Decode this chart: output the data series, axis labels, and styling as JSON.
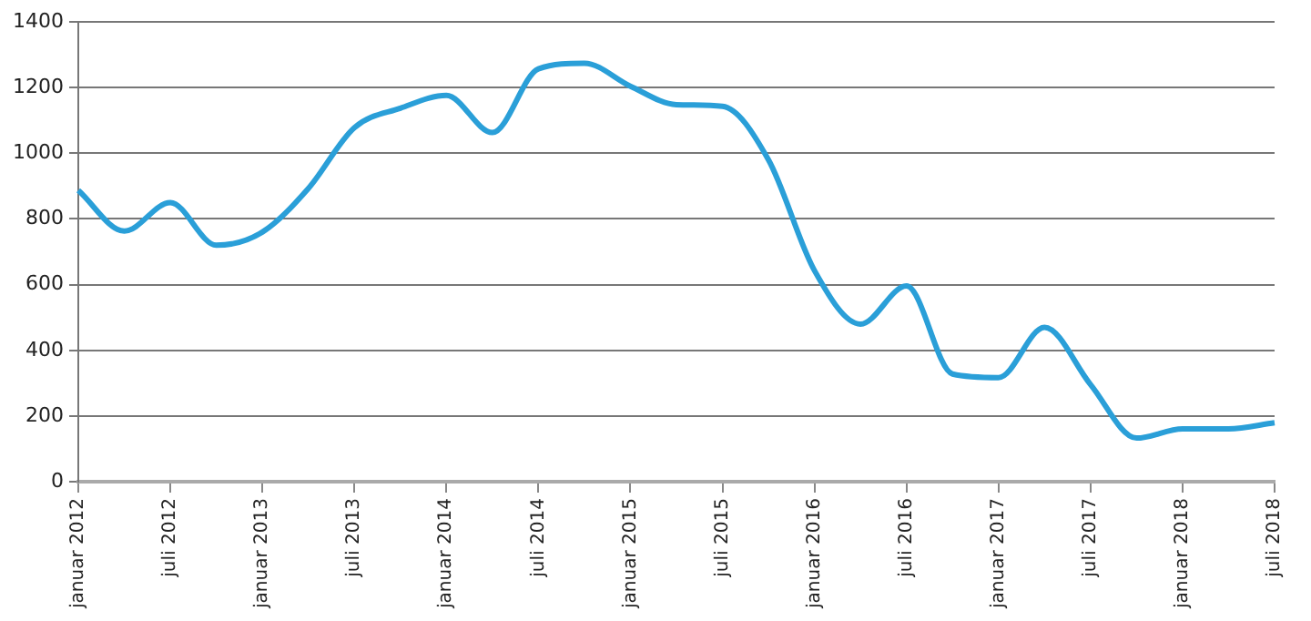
{
  "chart_data": {
    "type": "line",
    "categories": [
      "januar 2012",
      null,
      "juli 2012",
      null,
      "januar 2013",
      null,
      "juli 2013",
      null,
      "januar 2014",
      null,
      "juli 2014",
      null,
      "januar 2015",
      null,
      "juli 2015",
      null,
      "januar 2016",
      null,
      "juli 2016",
      null,
      "januar 2017",
      null,
      "juli 2017",
      null,
      "januar 2018",
      null,
      "juli 2018"
    ],
    "series": [
      {
        "color": "#2a9fd8",
        "values": [
          887,
          763,
          850,
          720,
          760,
          893,
          1078,
          1137,
          1176,
          1063,
          1257,
          1274,
          1204,
          1148,
          1143,
          980,
          643,
          480,
          596,
          328,
          317,
          470,
          296,
          133,
          161,
          161,
          180
        ]
      }
    ],
    "ylim": [
      0,
      1400
    ],
    "yticks": [
      0,
      200,
      400,
      600,
      800,
      1000,
      1200,
      1400
    ],
    "grid": "y",
    "legend": false,
    "marker": "none",
    "line_style": "solid"
  }
}
